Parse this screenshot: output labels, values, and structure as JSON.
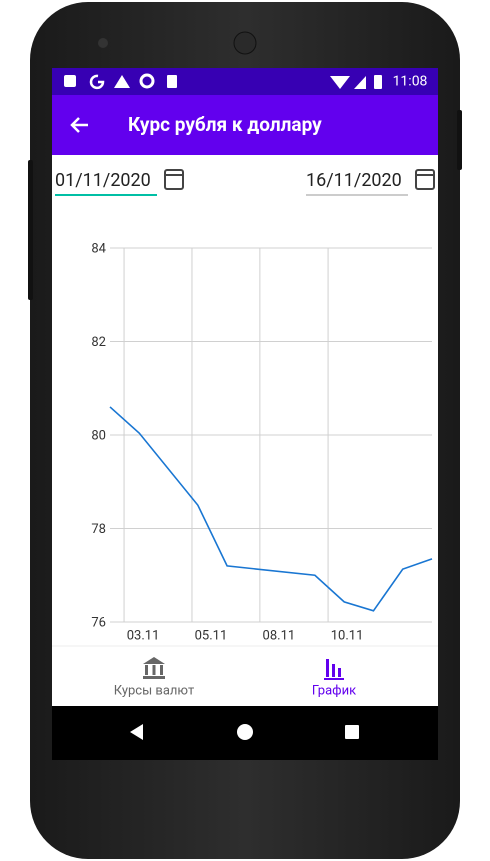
{
  "status_bar": {
    "time": "11:08"
  },
  "app_bar": {
    "title": "Курс рубля к доллару"
  },
  "date_from": {
    "value": "01/11/2020"
  },
  "date_to": {
    "value": "16/11/2020"
  },
  "chart_data": {
    "type": "line",
    "x": [
      0,
      1,
      3,
      4,
      7,
      8,
      9,
      10,
      11
    ],
    "values": [
      80.6,
      80.04,
      78.5,
      77.2,
      77.0,
      76.43,
      76.24,
      77.13,
      77.35
    ],
    "color": "#1976d2",
    "xlim": [
      0,
      11
    ],
    "xticks": [
      {
        "value": 0.48,
        "label": "03.11"
      },
      {
        "value": 2.8,
        "label": "05.11"
      },
      {
        "value": 5.12,
        "label": "08.11"
      },
      {
        "value": 7.45,
        "label": "10.11"
      }
    ],
    "ylim": [
      76,
      84
    ],
    "yticks": [
      84,
      82,
      80,
      78,
      76
    ],
    "grid": true
  },
  "nav": {
    "items": [
      {
        "label": "Курсы валют"
      },
      {
        "label": "График"
      }
    ]
  }
}
